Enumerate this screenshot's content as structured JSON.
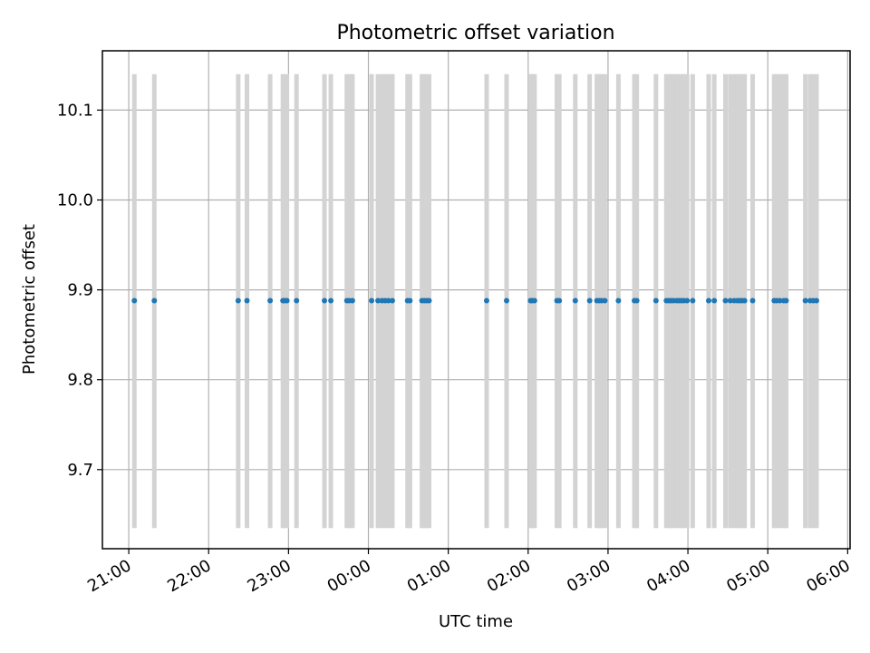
{
  "chart_data": {
    "type": "scatter",
    "title": "Photometric offset variation",
    "xlabel": "UTC time",
    "ylabel": "Photometric offset",
    "x_ticks": [
      "21:00",
      "22:00",
      "23:00",
      "00:00",
      "01:00",
      "02:00",
      "03:00",
      "04:00",
      "05:00",
      "06:00"
    ],
    "x_tick_hours": [
      21,
      22,
      23,
      24,
      25,
      26,
      27,
      28,
      29,
      30
    ],
    "xlim": [
      20.67,
      30.03
    ],
    "y_ticks": [
      "9.7",
      "9.8",
      "9.9",
      "10.0",
      "10.1"
    ],
    "y_tick_values": [
      9.7,
      9.8,
      9.9,
      10.0,
      10.1
    ],
    "ylim": [
      9.612,
      10.166
    ],
    "grid": true,
    "colors": {
      "points": "#1f77b4",
      "errorbars": "#d3d3d3",
      "grid": "#b0b0b0"
    },
    "series": [
      {
        "y_value": 9.888,
        "error_low": 9.635,
        "error_high": 10.14,
        "x": [
          21.07,
          21.32,
          22.37,
          22.48,
          22.77,
          22.93,
          22.95,
          22.98,
          23.1,
          23.45,
          23.53,
          23.73,
          23.76,
          23.8,
          24.04,
          24.12,
          24.17,
          24.21,
          24.25,
          24.3,
          24.49,
          24.52,
          24.67,
          24.7,
          24.73,
          24.76,
          25.48,
          25.73,
          26.03,
          26.05,
          26.08,
          26.36,
          26.39,
          26.59,
          26.77,
          26.86,
          26.89,
          26.92,
          26.96,
          27.13,
          27.33,
          27.36,
          27.6,
          27.73,
          27.76,
          27.79,
          27.82,
          27.86,
          27.89,
          27.92,
          27.95,
          27.99,
          28.06,
          28.26,
          28.33,
          28.47,
          28.53,
          28.58,
          28.62,
          28.65,
          28.68,
          28.71,
          28.81,
          29.08,
          29.11,
          29.15,
          29.2,
          29.23,
          29.47,
          29.53,
          29.57,
          29.61
        ]
      }
    ]
  }
}
